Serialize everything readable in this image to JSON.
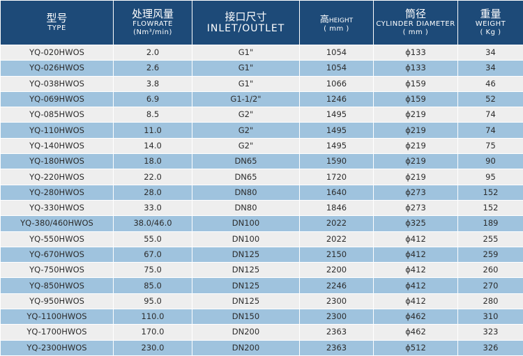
{
  "header": {
    "type": {
      "zh": "型号",
      "en": "TYPE"
    },
    "flowrate": {
      "zh": "处理风量",
      "en": "FLOWRATE",
      "unit": "(Nm³/min)"
    },
    "inlet": {
      "zh": "接口尺寸",
      "en": "INLET/OUTLET"
    },
    "height": {
      "zh": "高",
      "en": "HEIGHT",
      "unit": "( mm )"
    },
    "diameter": {
      "zh": "筒径",
      "en": "CYLINDER DIAMETER",
      "unit": "( mm )"
    },
    "weight": {
      "zh": "重量",
      "en": "WEIGHT",
      "unit": "( Kg )"
    }
  },
  "rows": [
    [
      "YQ-020HWOS",
      "2.0",
      "G1\"",
      "1054",
      "ϕ133",
      "34"
    ],
    [
      "YQ-026HWOS",
      "2.6",
      "G1\"",
      "1054",
      "ϕ133",
      "34"
    ],
    [
      "YQ-038HWOS",
      "3.8",
      "G1\"",
      "1066",
      "ϕ159",
      "46"
    ],
    [
      "YQ-069HWOS",
      "6.9",
      "G1-1/2\"",
      "1246",
      "ϕ159",
      "52"
    ],
    [
      "YQ-085HWOS",
      "8.5",
      "G2\"",
      "1495",
      "ϕ219",
      "74"
    ],
    [
      "YQ-110HWOS",
      "11.0",
      "G2\"",
      "1495",
      "ϕ219",
      "74"
    ],
    [
      "YQ-140HWOS",
      "14.0",
      "G2\"",
      "1495",
      "ϕ219",
      "75"
    ],
    [
      "YQ-180HWOS",
      "18.0",
      "DN65",
      "1590",
      "ϕ219",
      "90"
    ],
    [
      "YQ-220HWOS",
      "22.0",
      "DN65",
      "1720",
      "ϕ219",
      "95"
    ],
    [
      "YQ-280HWOS",
      "28.0",
      "DN80",
      "1640",
      "ϕ273",
      "152"
    ],
    [
      "YQ-330HWOS",
      "33.0",
      "DN80",
      "1846",
      "ϕ273",
      "152"
    ],
    [
      "YQ-380/460HWOS",
      "38.0/46.0",
      "DN100",
      "2022",
      "ϕ325",
      "189"
    ],
    [
      "YQ-550HWOS",
      "55.0",
      "DN100",
      "2022",
      "ϕ412",
      "255"
    ],
    [
      "YQ-670HWOS",
      "67.0",
      "DN125",
      "2150",
      "ϕ412",
      "259"
    ],
    [
      "YQ-750HWOS",
      "75.0",
      "DN125",
      "2200",
      "ϕ412",
      "260"
    ],
    [
      "YQ-850HWOS",
      "85.0",
      "DN125",
      "2246",
      "ϕ412",
      "270"
    ],
    [
      "YQ-950HWOS",
      "95.0",
      "DN125",
      "2300",
      "ϕ412",
      "280"
    ],
    [
      "YQ-1100HWOS",
      "110.0",
      "DN150",
      "2300",
      "ϕ462",
      "310"
    ],
    [
      "YQ-1700HWOS",
      "170.0",
      "DN200",
      "2363",
      "ϕ462",
      "323"
    ],
    [
      "YQ-2300HWOS",
      "230.0",
      "DN200",
      "2363",
      "ϕ512",
      "326"
    ]
  ],
  "colors": {
    "header_bg": "#1d4a78",
    "row_light": "#eeeeee",
    "row_blue": "#9fc3de"
  }
}
